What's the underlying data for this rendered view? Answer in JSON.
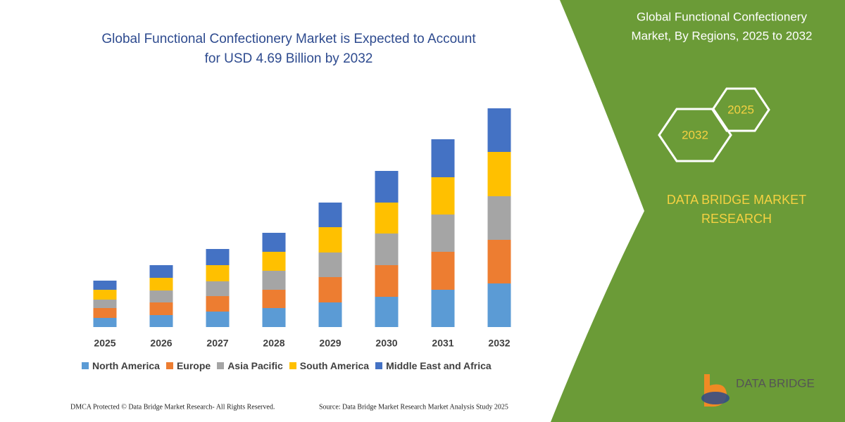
{
  "chart_data": {
    "type": "stacked-bar",
    "title_lines": [
      "Global Functional Confectionery Market is Expected to Account",
      "for USD 4.69 Billion by 2032"
    ],
    "categories": [
      "2025",
      "2026",
      "2027",
      "2028",
      "2029",
      "2030",
      "2031",
      "2032"
    ],
    "series": [
      {
        "name": "North America",
        "color": "#5b9bd5",
        "values": [
          13,
          17,
          22,
          27,
          35,
          43,
          53,
          62
        ]
      },
      {
        "name": "Europe",
        "color": "#ed7d31",
        "values": [
          14,
          18,
          22,
          26,
          36,
          45,
          54,
          62
        ]
      },
      {
        "name": "Asia Pacific",
        "color": "#a5a5a5",
        "values": [
          12,
          17,
          21,
          27,
          35,
          45,
          53,
          62
        ]
      },
      {
        "name": "South America",
        "color": "#ffc000",
        "values": [
          14,
          18,
          23,
          27,
          36,
          44,
          53,
          63
        ]
      },
      {
        "name": "Middle East and Africa",
        "color": "#4472c4",
        "values": [
          13,
          18,
          23,
          27,
          35,
          45,
          54,
          62
        ]
      }
    ],
    "ylim": [
      0,
      311
    ],
    "legend": "bottom"
  },
  "side_panel": {
    "title_lines": [
      "Global Functional Confectionery",
      "Market, By Regions, 2025 to 2032"
    ],
    "badges": [
      "2025",
      "2032"
    ],
    "brand_lines": [
      "DATA BRIDGE MARKET",
      "RESEARCH"
    ],
    "logo": "DATA BRIDGE"
  },
  "footer": {
    "rights": "DMCA Protected © Data Bridge Market Research-  All Rights Reserved.",
    "source": "Source: Data Bridge Market Research  Market Analysis Study 2025"
  }
}
